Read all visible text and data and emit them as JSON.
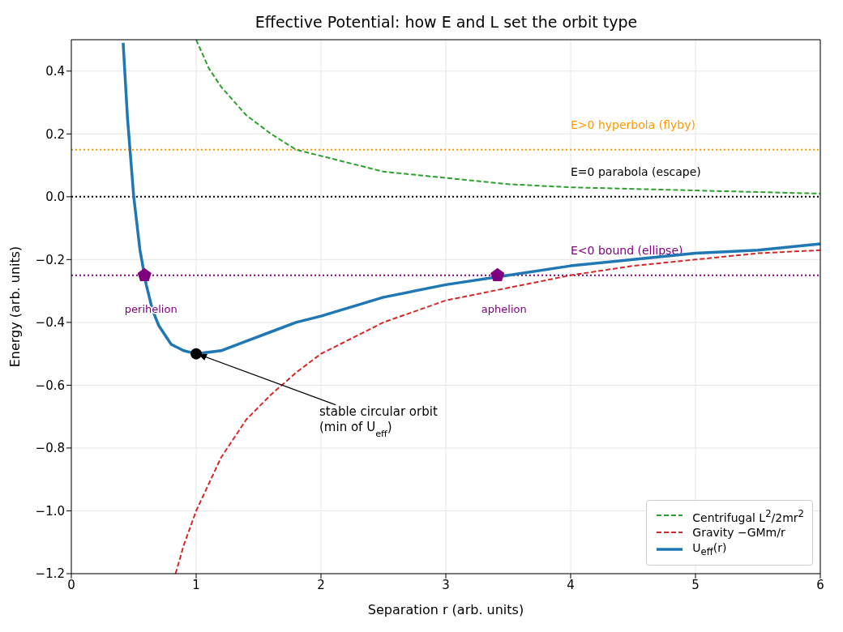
{
  "chart_data": {
    "type": "line",
    "title": "Effective Potential: how E and L set the orbit type",
    "xlabel": "Separation  r  (arb. units)",
    "ylabel": "Energy  (arb. units)",
    "xlim": [
      0,
      6
    ],
    "xticks": [
      0,
      1,
      2,
      3,
      4,
      5,
      6
    ],
    "ylim": [
      -1.2,
      0.5
    ],
    "yticks": [
      {
        "value": -1.2,
        "label": "−1.2"
      },
      {
        "value": -1.0,
        "label": "−1.0"
      },
      {
        "value": -0.8,
        "label": "−0.8"
      },
      {
        "value": -0.6,
        "label": "−0.6"
      },
      {
        "value": -0.4,
        "label": "−0.4"
      },
      {
        "value": -0.2,
        "label": "−0.2"
      },
      {
        "value": 0,
        "label": "0.0"
      },
      {
        "value": 0.2,
        "label": "0.2"
      },
      {
        "value": 0.4,
        "label": "0.4"
      }
    ],
    "grid": true,
    "legend": "bottom right",
    "series": [
      {
        "name": "Centrifugal L$^{2}$/2mr$^{2}$",
        "color": "#2ca02c",
        "line_style": "dashed",
        "x": [
          1.0,
          1.1,
          1.2,
          1.4,
          1.6,
          1.8,
          2.0,
          2.5,
          3.0,
          3.5,
          4.0,
          5.0,
          6.0
        ],
        "values": [
          0.5,
          0.41,
          0.35,
          0.26,
          0.2,
          0.15,
          0.13,
          0.08,
          0.06,
          0.04,
          0.03,
          0.02,
          0.01
        ]
      },
      {
        "name": "Gravity −GMm/r",
        "color": "#d62728",
        "line_style": "dashed",
        "x": [
          0.835,
          0.9,
          1.0,
          1.2,
          1.4,
          1.6,
          1.8,
          2.0,
          2.5,
          3.0,
          3.5,
          4.0,
          4.5,
          5.0,
          5.5,
          6.0
        ],
        "values": [
          -1.2,
          -1.11,
          -1.0,
          -0.83,
          -0.71,
          -0.63,
          -0.56,
          -0.5,
          -0.4,
          -0.33,
          -0.29,
          -0.25,
          -0.22,
          -0.2,
          -0.18,
          -0.17
        ]
      },
      {
        "name": "U$_{eff}$(r)",
        "color": "#1f77b4",
        "line_style": "solid",
        "x": [
          0.415,
          0.45,
          0.5,
          0.55,
          0.6,
          0.65,
          0.7,
          0.8,
          0.9,
          1.0,
          1.2,
          1.4,
          1.6,
          1.8,
          2.0,
          2.5,
          3.0,
          3.5,
          4.0,
          4.5,
          5.0,
          5.5,
          6.0
        ],
        "values": [
          0.49,
          0.25,
          0.0,
          -0.17,
          -0.28,
          -0.36,
          -0.41,
          -0.47,
          -0.49,
          -0.5,
          -0.49,
          -0.46,
          -0.43,
          -0.4,
          -0.38,
          -0.32,
          -0.28,
          -0.25,
          -0.22,
          -0.2,
          -0.18,
          -0.17,
          -0.15
        ]
      },
      {
        "type": "scatter",
        "color": "#800080",
        "x": [
          0.586,
          3.414
        ],
        "values": [
          -0.25,
          -0.25
        ]
      },
      {
        "type": "scatter",
        "color": "#000000",
        "marker": "circle",
        "x": [
          1.0
        ],
        "values": [
          -0.5
        ]
      }
    ],
    "ref_lines": [
      {
        "axis": "y",
        "value": 0.15,
        "label": "E>0  hyperbola (flyby)",
        "color": "#ff9900",
        "line_style": "dotted"
      },
      {
        "axis": "y",
        "value": 0,
        "label": "E=0  parabola (escape)",
        "color": "#000000",
        "line_style": "dotted"
      },
      {
        "axis": "y",
        "value": -0.25,
        "label": "E<0  bound (ellipse)",
        "color": "#800080",
        "line_style": "dotted"
      }
    ],
    "annotations": [
      {
        "text": "perihelion",
        "x": 0.586,
        "y": -0.25
      },
      {
        "text": "aphelion",
        "x": 3.414,
        "y": -0.25
      },
      {
        "text": "stable circular orbit (min of U$_{eff}$)",
        "x": 1.0,
        "y": -0.5
      }
    ]
  }
}
